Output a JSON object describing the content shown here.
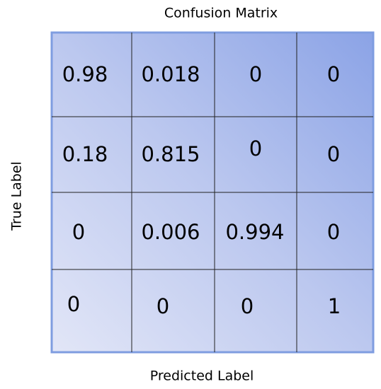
{
  "title": "Confusion Matrix",
  "x_label": "Predicted Label",
  "y_label": "True Label",
  "table": {
    "rows": [
      [
        0.98,
        0.018,
        0,
        0
      ],
      [
        0.18,
        0.815,
        0,
        0
      ],
      [
        0,
        0.006,
        0.994,
        0
      ],
      [
        0,
        0,
        0,
        1
      ]
    ]
  }
}
